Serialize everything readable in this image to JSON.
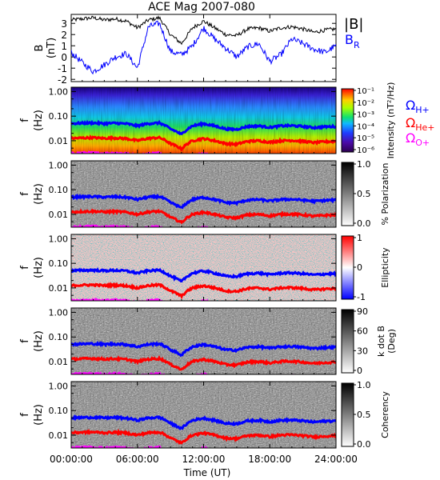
{
  "title": "ACE Mag 2007-080",
  "xlabel": "Time (UT)",
  "x_ticks": [
    "00:00:00",
    "06:00:00",
    "12:00:00",
    "18:00:00",
    "24:00:00"
  ],
  "colors": {
    "B_total": "#000000",
    "B_R": "#0000ff",
    "H_plus": "#0000ff",
    "He_plus": "#ff0000",
    "O_plus": "#ff00ff"
  },
  "chart_data": [
    {
      "type": "line",
      "panel": "B",
      "ylabel": [
        "B",
        "(nT)"
      ],
      "ylim": [
        -2.2,
        3.8
      ],
      "y_ticks": [
        "3",
        "2",
        "1",
        "0",
        "-1",
        "-2"
      ],
      "x_hours": [
        0,
        1,
        2,
        3,
        4,
        5,
        6,
        7,
        8,
        9,
        10,
        11,
        12,
        13,
        14,
        15,
        16,
        17,
        18,
        19,
        20,
        21,
        22,
        23,
        24
      ],
      "series": [
        {
          "name": "|B|",
          "values": [
            3.3,
            3.4,
            3.5,
            3.3,
            3.4,
            3.2,
            2.6,
            3.3,
            3.5,
            2.0,
            1.2,
            2.6,
            3.2,
            2.6,
            2.0,
            1.9,
            2.5,
            2.6,
            2.3,
            2.6,
            2.7,
            2.5,
            2.2,
            2.4,
            2.5
          ]
        },
        {
          "name": "B",
          "subscript": "R",
          "values": [
            0.4,
            -0.5,
            -1.3,
            -0.7,
            0.0,
            0.3,
            -1.0,
            2.7,
            3.0,
            0.5,
            0.2,
            1.0,
            2.6,
            1.6,
            0.8,
            0.0,
            0.9,
            1.2,
            -0.4,
            0.2,
            1.6,
            1.2,
            0.7,
            0.4,
            1.0
          ]
        }
      ]
    },
    {
      "type": "heatmap",
      "panel": "Intensity",
      "ylabel": [
        "f",
        "(Hz)"
      ],
      "y_ticks": [
        "1.00",
        "0.10",
        "0.01"
      ],
      "colorbar": {
        "label": "Intensity (nT²/Hz)",
        "ticks": [
          "10⁻¹",
          "10⁻²",
          "10⁻³",
          "10⁻⁴",
          "10⁻⁵",
          "10⁻⁶"
        ],
        "scale": "rainbow"
      },
      "legend": [
        {
          "label": "Ω",
          "sub": "H+",
          "color": "#0000ff"
        },
        {
          "label": "Ω",
          "sub": "He+",
          "color": "#ff0000"
        },
        {
          "label": "Ω",
          "sub": "O+",
          "color": "#ff00ff"
        }
      ]
    },
    {
      "type": "heatmap",
      "panel": "Polarization",
      "ylabel": [
        "f",
        "(Hz)"
      ],
      "y_ticks": [
        "1.00",
        "0.10",
        "0.01"
      ],
      "colorbar": {
        "label": "% Polarization",
        "ticks": [
          "1.0",
          "0.5",
          "0.0"
        ],
        "scale": "gray"
      }
    },
    {
      "type": "heatmap",
      "panel": "Ellipticity",
      "ylabel": [
        "f",
        "(Hz)"
      ],
      "y_ticks": [
        "1.00",
        "0.10",
        "0.01"
      ],
      "colorbar": {
        "label": "Ellipticity",
        "ticks": [
          "1",
          "0",
          "-1"
        ],
        "scale": "bwr"
      }
    },
    {
      "type": "heatmap",
      "panel": "Angle",
      "ylabel": [
        "f",
        "(Hz)"
      ],
      "y_ticks": [
        "1.00",
        "0.10",
        "0.01"
      ],
      "colorbar": {
        "label": "k dot B (Deg)",
        "label_lines": [
          "k dot B",
          "(Deg)"
        ],
        "ticks": [
          "90",
          "60",
          "30",
          "0"
        ],
        "scale": "gray"
      }
    },
    {
      "type": "heatmap",
      "panel": "Coherency",
      "ylabel": [
        "f",
        "(Hz)"
      ],
      "y_ticks": [
        "1.00",
        "0.10",
        "0.01"
      ],
      "colorbar": {
        "label": "Coherency",
        "ticks": [
          "1.0",
          "0.5",
          "0.0"
        ],
        "scale": "gray"
      }
    }
  ],
  "gyrofrequency_hz": {
    "x_hours": [
      0,
      1,
      2,
      3,
      4,
      5,
      6,
      7,
      8,
      9,
      10,
      11,
      12,
      13,
      14,
      15,
      16,
      17,
      18,
      19,
      20,
      21,
      22,
      23,
      24
    ],
    "H_plus": [
      0.05,
      0.052,
      0.053,
      0.05,
      0.052,
      0.049,
      0.04,
      0.05,
      0.053,
      0.03,
      0.018,
      0.04,
      0.049,
      0.04,
      0.03,
      0.029,
      0.038,
      0.04,
      0.035,
      0.04,
      0.041,
      0.038,
      0.034,
      0.037,
      0.038
    ],
    "He_plus": [
      0.0125,
      0.013,
      0.0133,
      0.0125,
      0.013,
      0.0122,
      0.01,
      0.0125,
      0.0133,
      0.0076,
      0.0046,
      0.01,
      0.0122,
      0.01,
      0.0076,
      0.0072,
      0.0095,
      0.01,
      0.0087,
      0.01,
      0.0103,
      0.0095,
      0.0084,
      0.0091,
      0.0095
    ],
    "O_plus": [
      0.0031,
      0.0033,
      0.0033,
      0.0031,
      0.0033,
      0.0031,
      0.0025,
      0.0031,
      0.0033,
      0.0019,
      0.0011,
      0.0025,
      0.0031,
      0.0025,
      0.0019,
      0.0018,
      0.0024,
      0.0025,
      0.0022,
      0.0025,
      0.0026,
      0.0024,
      0.0021,
      0.0023,
      0.0024
    ]
  }
}
